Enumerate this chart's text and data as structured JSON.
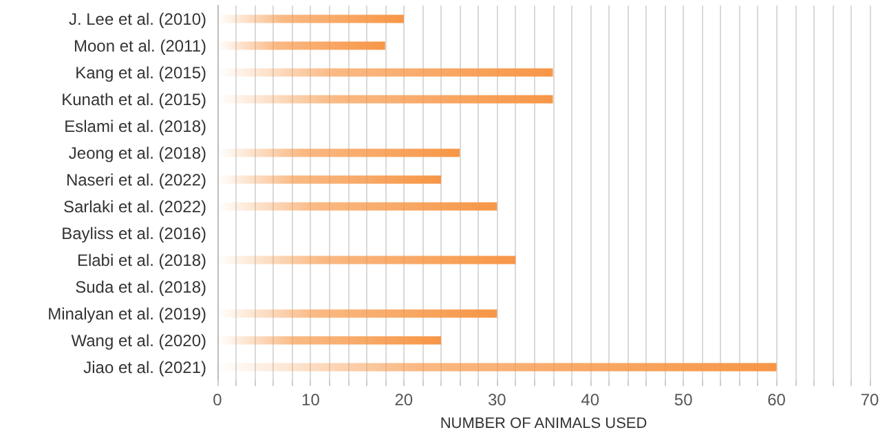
{
  "chart_data": {
    "type": "bar",
    "orientation": "horizontal",
    "xlabel": "NUMBER OF ANIMALS USED",
    "categories": [
      "J. Lee et al. (2010)",
      "Moon et al. (2011)",
      "Kang et al. (2015)",
      "Kunath et al. (2015)",
      "Eslami et al. (2018)",
      "Jeong et al. (2018)",
      "Naseri et al. (2022)",
      "Sarlaki et al. (2022)",
      "Bayliss et al. (2016)",
      "Elabi et al. (2018)",
      "Suda et al. (2018)",
      "Minalyan et al. (2019)",
      "Wang et al. (2020)",
      "Jiao et al. (2021)"
    ],
    "values": [
      20,
      18,
      36,
      36,
      null,
      26,
      24,
      30,
      null,
      32,
      null,
      30,
      24,
      60
    ],
    "color": "#f79646",
    "xlim": [
      0,
      70
    ],
    "xticks": [
      0,
      {
        "value": 2,
        "label": null
      },
      {
        "value": 4,
        "label": null
      },
      {
        "value": 6,
        "label": null
      },
      {
        "value": 8,
        "label": null
      },
      10,
      {
        "value": 12,
        "label": null
      },
      {
        "value": 14,
        "label": null
      },
      {
        "value": 16,
        "label": null
      },
      {
        "value": 18,
        "label": null
      },
      20,
      {
        "value": 22,
        "label": null
      },
      {
        "value": 24,
        "label": null
      },
      {
        "value": 26,
        "label": null
      },
      {
        "value": 28,
        "label": null
      },
      30,
      {
        "value": 32,
        "label": null
      },
      {
        "value": 34,
        "label": null
      },
      {
        "value": 36,
        "label": null
      },
      {
        "value": 38,
        "label": null
      },
      40,
      {
        "value": 42,
        "label": null
      },
      {
        "value": 44,
        "label": null
      },
      {
        "value": 46,
        "label": null
      },
      {
        "value": 48,
        "label": null
      },
      50,
      {
        "value": 52,
        "label": null
      },
      {
        "value": 54,
        "label": null
      },
      {
        "value": 56,
        "label": null
      },
      {
        "value": 58,
        "label": null
      },
      60,
      {
        "value": 62,
        "label": null
      },
      {
        "value": 64,
        "label": null
      },
      {
        "value": 66,
        "label": null
      },
      {
        "value": 68,
        "label": null
      },
      70
    ],
    "grid": "x"
  }
}
